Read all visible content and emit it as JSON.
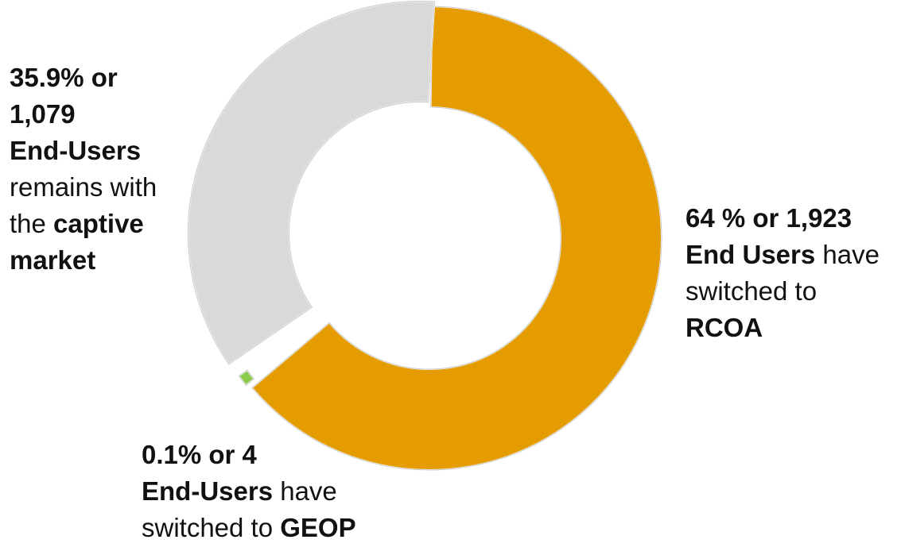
{
  "chart_data": {
    "type": "pie",
    "donut": true,
    "slices": [
      {
        "key": "rcoa",
        "value": 64,
        "count": 1923,
        "color": "#E59C00",
        "offset": 0,
        "label_lines": [
          [
            {
              "text": "64 % or 1,923",
              "bold": true
            }
          ],
          [
            {
              "text": "End Users",
              "bold": true
            },
            {
              "text": " have",
              "bold": false
            }
          ],
          [
            {
              "text": "switched to",
              "bold": false
            }
          ],
          [
            {
              "text": "RCOA",
              "bold": true
            }
          ]
        ]
      },
      {
        "key": "geop",
        "value": 0.1,
        "count": 4,
        "color": "#8CCB4E",
        "offset": 1.0,
        "label_lines": [
          [
            {
              "text": "0.1% or 4",
              "bold": true
            }
          ],
          [
            {
              "text": "End-Users",
              "bold": true
            },
            {
              "text": " have",
              "bold": false
            }
          ],
          [
            {
              "text": "switched to ",
              "bold": false
            },
            {
              "text": "GEOP",
              "bold": true
            }
          ]
        ]
      },
      {
        "key": "captive",
        "value": 35.9,
        "count": 1079,
        "color": "#D9D9D9",
        "offset": 0.35,
        "label_lines": [
          [
            {
              "text": "35.9% or",
              "bold": true
            }
          ],
          [
            {
              "text": "1,079",
              "bold": true
            }
          ],
          [
            {
              "text": "End-Users",
              "bold": true
            }
          ],
          [
            {
              "text": "remains with",
              "bold": false
            }
          ],
          [
            {
              "text": "the ",
              "bold": false
            },
            {
              "text": "captive",
              "bold": true
            }
          ],
          [
            {
              "text": "market",
              "bold": true
            }
          ]
        ]
      }
    ],
    "start_angle_deg": 0,
    "direction": "clockwise",
    "legend": "none",
    "title": ""
  }
}
